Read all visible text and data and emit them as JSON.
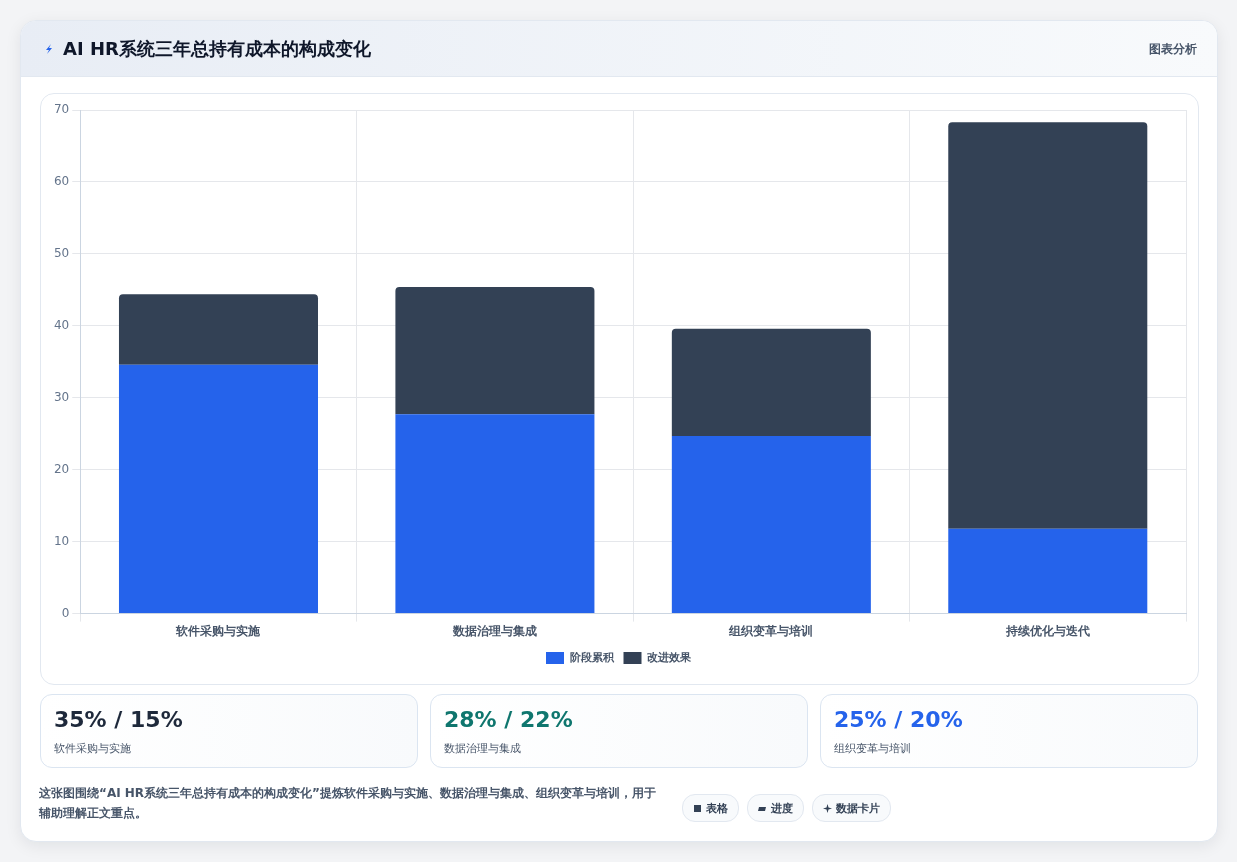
{
  "chart_data": [
    {
      "type": "bar",
      "title": "AI HR系统三年总持有成本的构成变化",
      "categories": [
        "软件采购与实施",
        "数据治理与集成",
        "组织变革与培训",
        "持续优化与迭代"
      ],
      "series": [
        {
          "name": "阶段累积",
          "color": "#2563eb",
          "values": [
            34.6,
            27.7,
            24.7,
            11.8
          ]
        },
        {
          "name": "改进效果",
          "color": "#334155",
          "values": [
            9.8,
            17.7,
            14.9,
            56.5
          ]
        }
      ],
      "stacked": true,
      "ylim": [
        0,
        70
      ],
      "yticks": [
        0,
        10,
        20,
        30,
        40,
        50,
        60,
        70
      ],
      "grid": true,
      "legend": "bottom",
      "annotations": [
        "图表分析",
        "这张图围绕“AI HR系统三年总持有成本的构成变化”提炼软件采购与实施、数据治理与集成、组织变革与培训，用于辅助理解正文重点。",
        "表格",
        "进度",
        "数据卡片"
      ]
    },
    {
      "type": "other",
      "title": "35% / 15%",
      "subtitle": "软件采购与实施",
      "color": "#1e293b"
    },
    {
      "type": "other",
      "title": "28% / 22%",
      "subtitle": "数据治理与集成",
      "color": "#0f766e"
    },
    {
      "type": "other",
      "title": "25% / 20%",
      "subtitle": "组织变革与培训",
      "color": "#2563eb"
    }
  ]
}
